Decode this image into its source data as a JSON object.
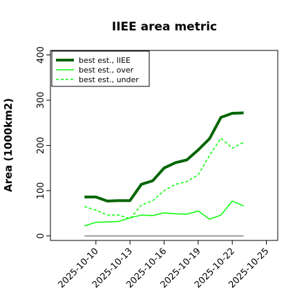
{
  "chart_data": {
    "type": "line",
    "title": "IIEE area metric",
    "ylabel": "Area (1000km2)",
    "xlabel": "",
    "x_ticks": [
      "2025-10-10",
      "2025-10-13",
      "2025-10-16",
      "2025-10-19",
      "2025-10-22",
      "2025-10-25"
    ],
    "y_ticks": [
      "0",
      "100",
      "200",
      "300",
      "400"
    ],
    "xlim": [
      "2025-10-06",
      "2025-10-26"
    ],
    "ylim": [
      -10,
      410
    ],
    "x": [
      "2025-10-09",
      "2025-10-10",
      "2025-10-11",
      "2025-10-12",
      "2025-10-13",
      "2025-10-14",
      "2025-10-15",
      "2025-10-16",
      "2025-10-17",
      "2025-10-18",
      "2025-10-19",
      "2025-10-20",
      "2025-10-21",
      "2025-10-22",
      "2025-10-23"
    ],
    "series": [
      {
        "name": "best est., IIEE",
        "color": "#006400",
        "style": "solid-thick",
        "values": [
          86,
          86,
          77,
          78,
          78,
          114,
          122,
          150,
          162,
          168,
          190,
          215,
          262,
          271,
          272
        ]
      },
      {
        "name": "best est., over",
        "color": "#00ff00",
        "style": "solid",
        "values": [
          22,
          30,
          31,
          32,
          40,
          46,
          45,
          51,
          49,
          48,
          55,
          37,
          46,
          77,
          66
        ]
      },
      {
        "name": "best est., under",
        "color": "#00ff00",
        "style": "dashed",
        "values": [
          65,
          57,
          46,
          46,
          38,
          68,
          78,
          100,
          114,
          120,
          135,
          178,
          216,
          194,
          207
        ]
      },
      {
        "name": "",
        "color": "#7f7f7f",
        "style": "solid",
        "values": [
          0,
          0,
          0,
          0,
          0,
          0,
          0,
          0,
          0,
          0,
          0,
          0,
          0,
          0,
          0
        ]
      }
    ],
    "legend_position": "top-left",
    "grid": false
  }
}
